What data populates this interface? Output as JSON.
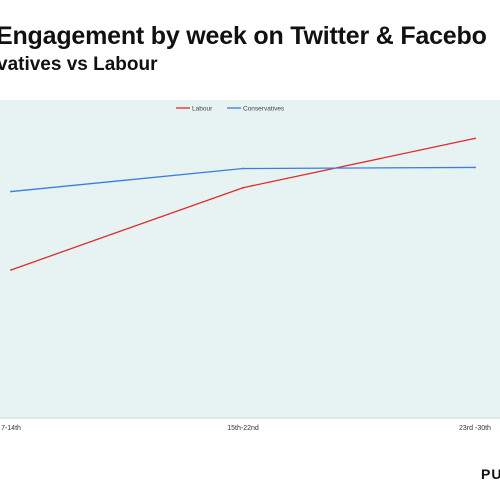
{
  "header": {
    "title": "Engagement by week on Twitter & Facebo",
    "subtitle": "vatives vs Labour"
  },
  "brand": {
    "text": "PU"
  },
  "chart_data": {
    "type": "line",
    "categories": [
      "7-14th",
      "15th-22nd",
      "23rd -30th"
    ],
    "series": [
      {
        "name": "Labour",
        "color": "#e02b2b",
        "values": [
          270,
          420,
          510
        ]
      },
      {
        "name": "Conservatives",
        "color": "#3d7ede",
        "values": [
          413,
          455,
          457
        ]
      }
    ],
    "ylim": [
      0,
      580
    ],
    "grid": false,
    "legend": "top-center",
    "plot_background": "#e6f3f2"
  }
}
